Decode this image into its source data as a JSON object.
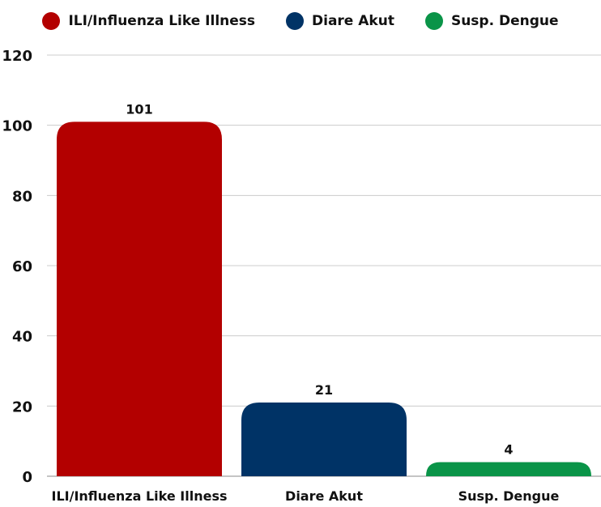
{
  "chart_data": {
    "type": "bar",
    "categories": [
      "ILI/Influenza Like Illness",
      "Diare Akut",
      "Susp. Dengue"
    ],
    "values": [
      101,
      21,
      4
    ],
    "colors": [
      "#B30000",
      "#003366",
      "#0A9448"
    ],
    "legend": [
      "ILI/Influenza Like Illness",
      "Diare Akut",
      "Susp. Dengue"
    ],
    "legend_position": "top",
    "data_labels": [
      "101",
      "21",
      "4"
    ],
    "ylim": [
      0,
      120
    ],
    "yticks": [
      0,
      20,
      40,
      60,
      80,
      100,
      120
    ],
    "grid": true
  }
}
